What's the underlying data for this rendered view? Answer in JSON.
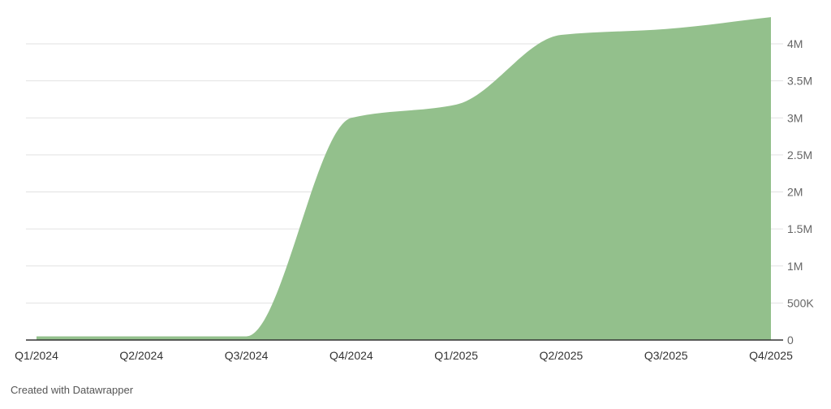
{
  "chart_data": {
    "type": "area",
    "x": [
      "Q1/2024",
      "Q2/2024",
      "Q3/2024",
      "Q4/2024",
      "Q1/2025",
      "Q2/2025",
      "Q3/2025",
      "Q4/2025"
    ],
    "values": [
      50000,
      50000,
      50000,
      3000000,
      3180000,
      4120000,
      4200000,
      4360000
    ],
    "y_ticks": [
      0,
      500000,
      1000000,
      1500000,
      2000000,
      2500000,
      3000000,
      3500000,
      4000000
    ],
    "y_tick_labels": [
      "0",
      "500K",
      "1M",
      "1.5M",
      "2M",
      "2.5M",
      "3M",
      "3.5M",
      "4M"
    ],
    "ylim": [
      0,
      4400000
    ],
    "grid": true,
    "y_axis_side": "right",
    "fill_color": "#93c08c"
  },
  "footer": {
    "credit": "Created with Datawrapper"
  },
  "colors": {
    "area": "#93c08c",
    "grid": "#e2e2e2",
    "baseline": "#333333"
  }
}
